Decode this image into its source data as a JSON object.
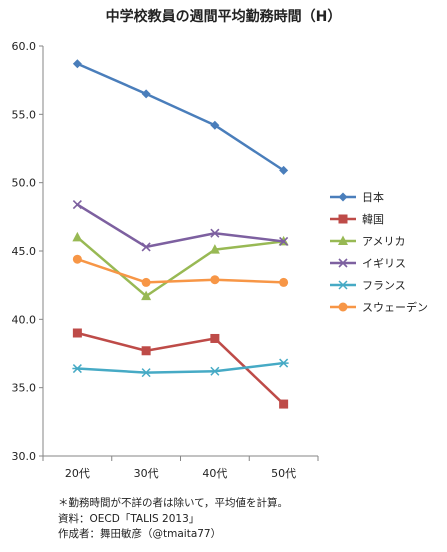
{
  "chart_data": {
    "type": "line",
    "title": "中学校教員の週間平均勤務時間（H）",
    "xlabel": "",
    "ylabel": "",
    "categories": [
      "20代",
      "30代",
      "40代",
      "50代"
    ],
    "ylim": [
      30.0,
      60.0
    ],
    "yticks": [
      "30.0",
      "35.0",
      "40.0",
      "45.0",
      "50.0",
      "55.0",
      "60.0"
    ],
    "grid": false,
    "legend_position": "right",
    "series": [
      {
        "name": "日本",
        "values": [
          58.7,
          56.5,
          54.2,
          50.9
        ],
        "color": "#4a7ebb",
        "marker": "diamond"
      },
      {
        "name": "韓国",
        "values": [
          39.0,
          37.7,
          38.6,
          33.8
        ],
        "color": "#be4b48",
        "marker": "square"
      },
      {
        "name": "アメリカ",
        "values": [
          46.0,
          41.7,
          45.1,
          45.7
        ],
        "color": "#98b954",
        "marker": "triangle"
      },
      {
        "name": "イギリス",
        "values": [
          48.4,
          45.3,
          46.3,
          45.7
        ],
        "color": "#7d60a0",
        "marker": "x"
      },
      {
        "name": "フランス",
        "values": [
          36.4,
          36.1,
          36.2,
          36.8
        ],
        "color": "#46aac5",
        "marker": "asterisk"
      },
      {
        "name": "スウェーデン",
        "values": [
          44.4,
          42.7,
          42.9,
          42.7
        ],
        "color": "#f79646",
        "marker": "circle"
      }
    ]
  },
  "notes": {
    "line1": "＊勤務時間が不詳の者は除いて，平均値を計算。",
    "line2": "資料：OECD「TALIS 2013」",
    "line3": "作成者：舞田敏彦（@tmaita77）"
  }
}
